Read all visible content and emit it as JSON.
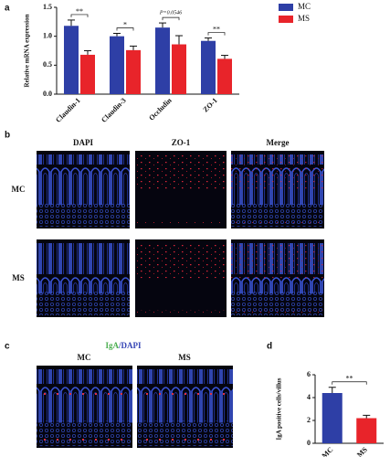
{
  "chart_data": [
    {
      "type": "bar",
      "panel": "a",
      "y_label": "Relative mRNA expression",
      "categories": [
        "Claudin-1",
        "Claudin-3",
        "Occludin",
        "ZO-1"
      ],
      "series": [
        {
          "name": "MC",
          "color": "#2e3fa6",
          "values": [
            1.18,
            1.0,
            1.15,
            0.92
          ],
          "errors": [
            0.1,
            0.05,
            0.08,
            0.05
          ]
        },
        {
          "name": "MS",
          "color": "#e8242a",
          "values": [
            0.68,
            0.76,
            0.86,
            0.61
          ],
          "errors": [
            0.07,
            0.07,
            0.15,
            0.06
          ]
        }
      ],
      "ylim": [
        0,
        1.5
      ],
      "yticks": [
        {
          "value": 0,
          "label": "0.0"
        },
        0.5,
        {
          "value": 1,
          "label": "1.0"
        },
        1.5
      ],
      "annotations": [
        "**",
        "*",
        "P=0.0546",
        "**"
      ]
    },
    {
      "type": "bar",
      "panel": "d",
      "y_label": "IgA positive cells/villus",
      "categories": [
        "MC",
        "MS"
      ],
      "values": [
        4.4,
        2.2
      ],
      "errors": [
        0.5,
        0.25
      ],
      "colors": [
        "#2e3fa6",
        "#e8242a"
      ],
      "ylim": [
        0,
        6
      ],
      "yticks": [
        0,
        2,
        4,
        6
      ],
      "annotations": [
        "**"
      ]
    }
  ],
  "panel_b": {
    "label": "b",
    "columns": [
      "DAPI",
      "ZO-1",
      "Merge"
    ],
    "rows": [
      "MC",
      "MS"
    ]
  },
  "panel_c": {
    "label": "c",
    "title_parts": [
      "IgA",
      "/DAPI"
    ],
    "columns": [
      "MC",
      "MS"
    ]
  }
}
